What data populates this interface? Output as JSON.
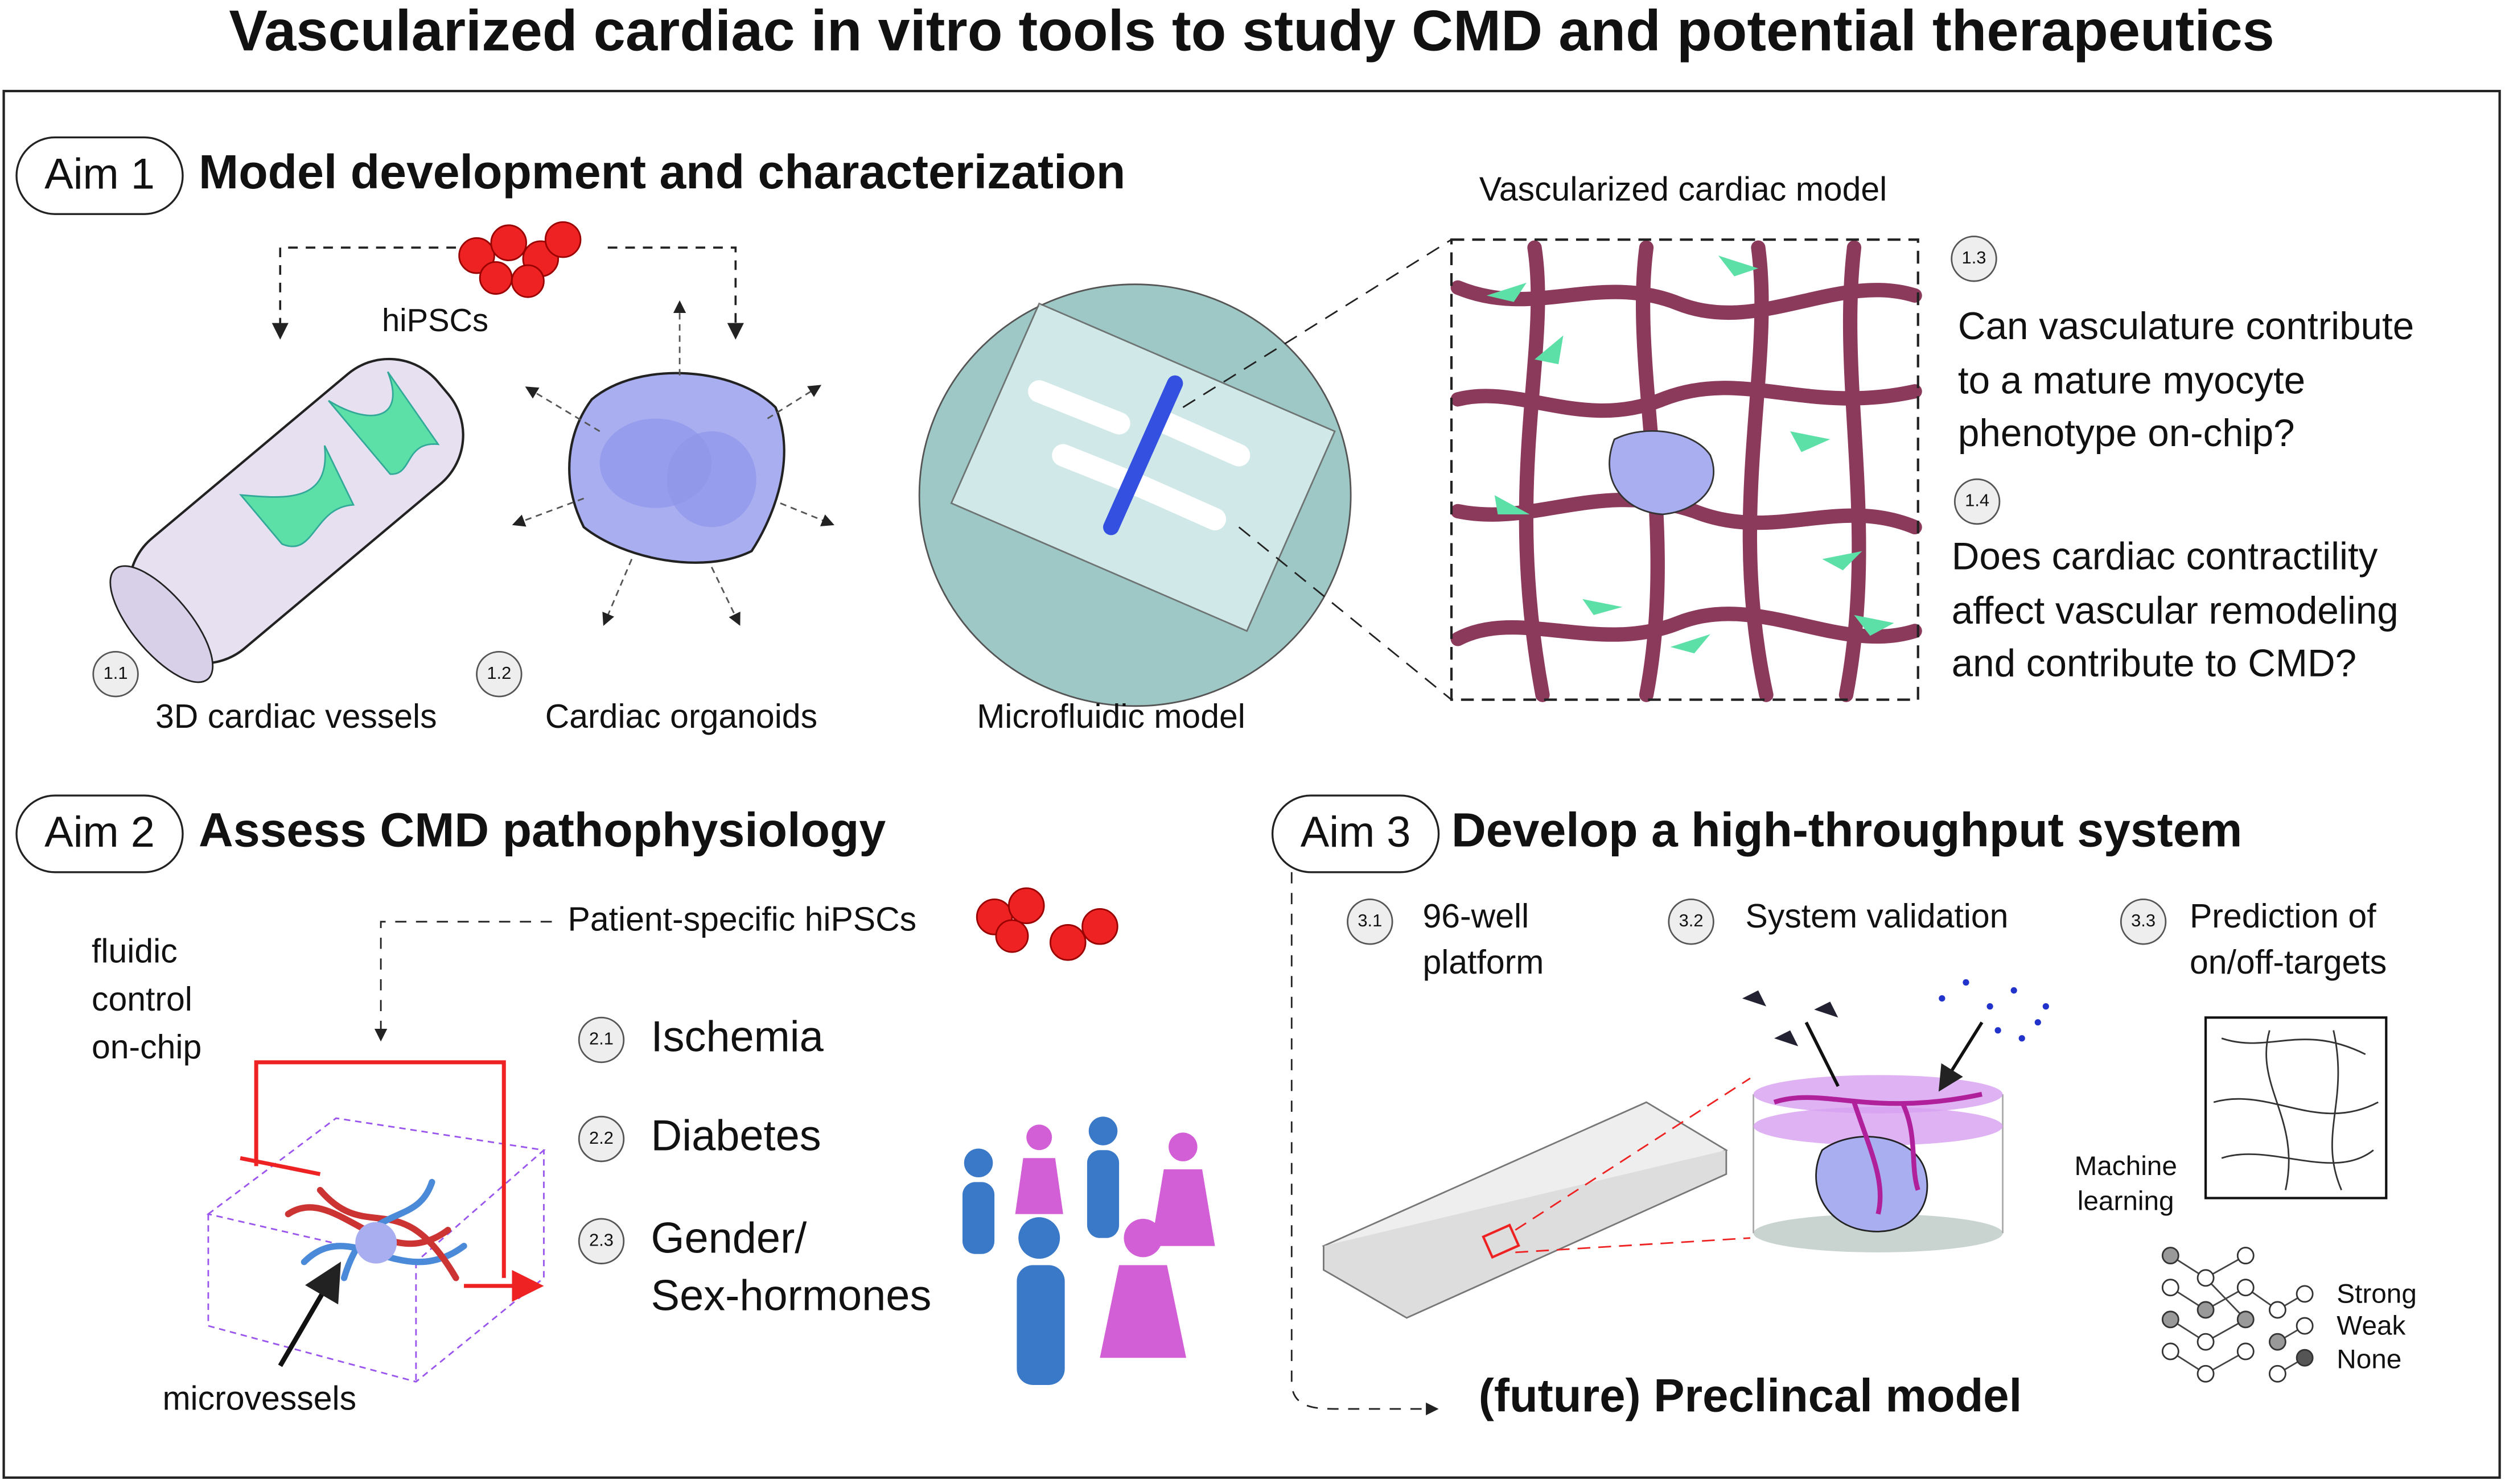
{
  "title": "Vascularized cardiac in vitro tools to study CMD and potential therapeutics",
  "aim1": {
    "label": "Aim 1",
    "title": "Model development and characterization",
    "cells": "hiPSCs",
    "items": [
      {
        "badge": "1.1",
        "label": "3D cardiac vessels"
      },
      {
        "badge": "1.2",
        "label": "Cardiac organoids"
      }
    ],
    "device": "Microfluidic model",
    "model": "Vascularized cardiac model",
    "questions": [
      {
        "badge": "1.3",
        "lines": [
          "Can vasculature contribute",
          "to a mature myocyte",
          "phenotype on-chip?"
        ]
      },
      {
        "badge": "1.4",
        "lines": [
          "Does cardiac contractility",
          "affect vascular remodeling",
          "and contribute to CMD?"
        ]
      }
    ]
  },
  "aim2": {
    "label": "Aim 2",
    "title": "Assess CMD pathophysiology",
    "cells": "Patient-specific hiPSCs",
    "control": [
      "fluidic",
      "control",
      "on-chip"
    ],
    "vessels": "microvessels",
    "items": [
      {
        "badge": "2.1",
        "lines": [
          "Ischemia"
        ]
      },
      {
        "badge": "2.2",
        "lines": [
          "Diabetes"
        ]
      },
      {
        "badge": "2.3",
        "lines": [
          "Gender/",
          "Sex-hormones"
        ]
      }
    ]
  },
  "aim3": {
    "label": "Aim 3",
    "title": "Develop a high-throughput system",
    "items": [
      {
        "badge": "3.1",
        "lines": [
          "96-well",
          "platform"
        ]
      },
      {
        "badge": "3.2",
        "lines": [
          "System validation"
        ]
      },
      {
        "badge": "3.3",
        "lines": [
          "Prediction of",
          "on/off-targets"
        ]
      }
    ],
    "ml": [
      "Machine",
      "learning"
    ],
    "legend": [
      "Strong",
      "Weak",
      "None"
    ],
    "future": "(future) Preclincal model"
  }
}
